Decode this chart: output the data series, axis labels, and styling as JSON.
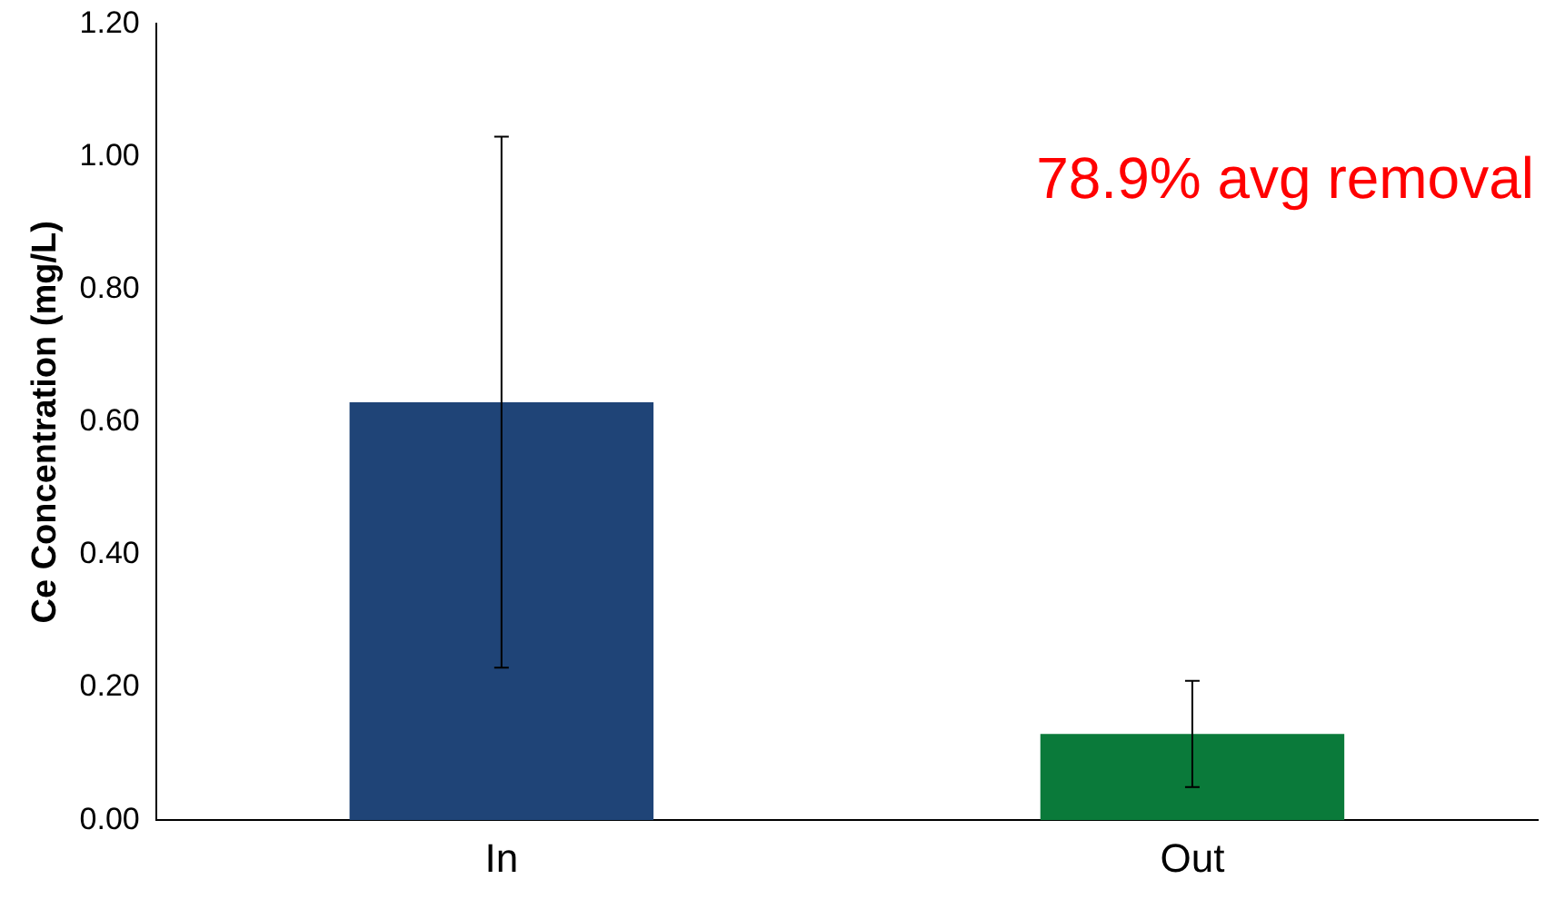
{
  "chart_data": {
    "type": "bar",
    "ylabel": "Ce Concentration (mg/L)",
    "categories": [
      "In",
      "Out"
    ],
    "values": [
      0.63,
      0.13
    ],
    "colors": [
      "#1f4477",
      "#0a7a3a"
    ],
    "errors": [
      0.4,
      0.08
    ],
    "ylim": [
      0,
      1.2
    ],
    "yticks": [
      {
        "value": 0,
        "label": "0.00"
      },
      {
        "value": 0.2,
        "label": "0.20"
      },
      {
        "value": 0.4,
        "label": "0.40"
      },
      {
        "value": 0.6,
        "label": "0.60"
      },
      {
        "value": 0.8,
        "label": "0.80"
      },
      {
        "value": 1.0,
        "label": "1.00"
      },
      {
        "value": 1.2,
        "label": "1.20"
      }
    ],
    "grid": false,
    "legend": false,
    "annotations": [
      "78.9% avg removal"
    ]
  }
}
